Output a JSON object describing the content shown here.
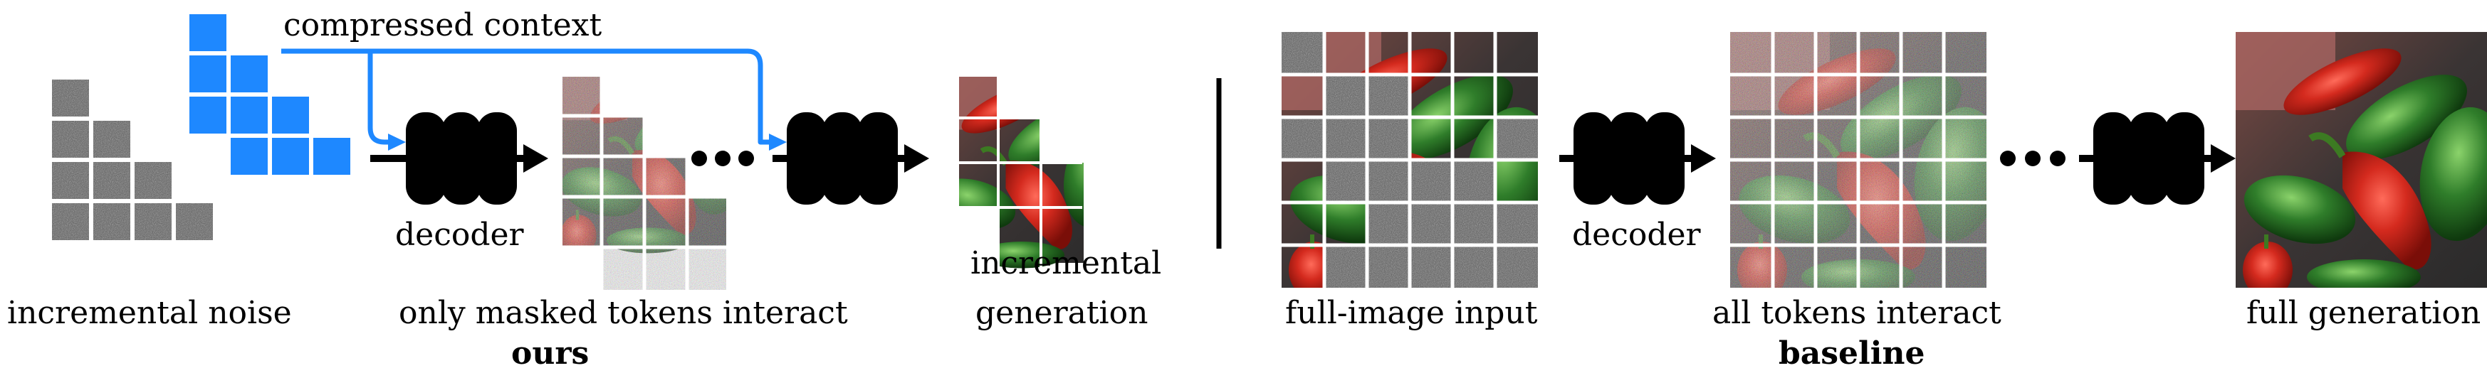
{
  "left_panel": {
    "context_label": "compressed context",
    "decoder_label": "decoder",
    "caption_noise": "incremental noise",
    "caption_interact": "only masked tokens interact",
    "caption_generation_line1": "incremental",
    "caption_generation_line2": "generation",
    "method_label": "ours"
  },
  "right_panel": {
    "caption_input": "full-image input",
    "decoder_label": "decoder",
    "caption_interact": "all tokens interact",
    "caption_generation": "full generation",
    "method_label": "baseline"
  },
  "colors": {
    "context_blue": "#1e88ff",
    "noise_gray": "#5a5a5a",
    "decoder_black": "#000000",
    "pepper_red": "#c8221a",
    "pepper_green": "#2f7d2a",
    "background_dark": "#3a3a3a"
  },
  "icons": {
    "decoder": "decoder-block-icon",
    "ellipsis": "ellipsis-icon",
    "separator": "vertical-divider"
  }
}
